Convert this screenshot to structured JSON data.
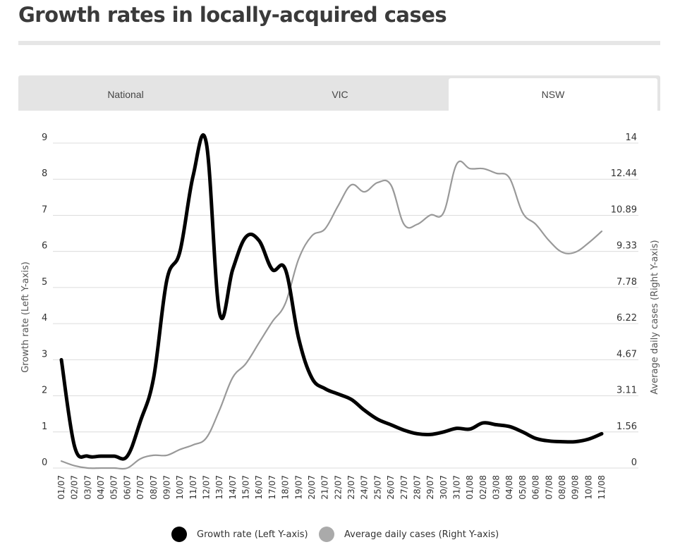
{
  "page": {
    "title": "Growth rates in locally-acquired cases"
  },
  "tabs": [
    {
      "label": "National",
      "active": false
    },
    {
      "label": "VIC",
      "active": false
    },
    {
      "label": "NSW",
      "active": true
    }
  ],
  "chart_data": {
    "type": "line",
    "title": "Growth rates in locally-acquired cases",
    "categories": [
      "01/07",
      "02/07",
      "03/07",
      "04/07",
      "05/07",
      "06/07",
      "07/07",
      "08/07",
      "09/07",
      "10/07",
      "11/07",
      "12/07",
      "13/07",
      "14/07",
      "15/07",
      "16/07",
      "17/07",
      "18/07",
      "19/07",
      "20/07",
      "21/07",
      "22/07",
      "23/07",
      "24/07",
      "25/07",
      "26/07",
      "27/07",
      "28/07",
      "29/07",
      "30/07",
      "31/07",
      "01/08",
      "02/08",
      "03/08",
      "04/08",
      "05/08",
      "06/08",
      "07/08",
      "08/08",
      "09/08",
      "10/08",
      "11/08"
    ],
    "left_axis": {
      "label": "Growth rate (Left Y-axis)",
      "ticks": [
        "0",
        "1",
        "2",
        "3",
        "4",
        "5",
        "6",
        "7",
        "8",
        "9"
      ],
      "ylim": [
        0,
        9
      ]
    },
    "right_axis": {
      "label": "Average daily cases (Right Y-axis)",
      "ticks": [
        "0",
        "1.56",
        "3.11",
        "4.67",
        "6.22",
        "7.78",
        "9.33",
        "10.89",
        "12.44",
        "14"
      ],
      "ylim": [
        0,
        14
      ]
    },
    "series": [
      {
        "name": "Growth rate (Left Y-axis)",
        "axis": "left",
        "color": "#000000",
        "values": [
          3.0,
          0.6,
          0.33,
          0.33,
          0.33,
          0.33,
          1.3,
          2.5,
          5.2,
          6.0,
          8.1,
          9.0,
          4.3,
          5.5,
          6.4,
          6.3,
          5.5,
          5.5,
          3.6,
          2.5,
          2.2,
          2.05,
          1.9,
          1.6,
          1.35,
          1.2,
          1.05,
          0.95,
          0.93,
          1.0,
          1.1,
          1.08,
          1.25,
          1.2,
          1.15,
          1.0,
          0.82,
          0.75,
          0.73,
          0.73,
          0.8,
          0.95
        ]
      },
      {
        "name": "Average daily cases (Right Y-axis)",
        "axis": "right",
        "color": "#999999",
        "values": [
          0.3,
          0.1,
          0.0,
          0.0,
          0.0,
          0.0,
          0.4,
          0.55,
          0.55,
          0.8,
          1.0,
          1.3,
          2.5,
          3.9,
          4.5,
          5.4,
          6.3,
          7.1,
          9.0,
          10.0,
          10.3,
          11.3,
          12.2,
          11.9,
          12.3,
          12.2,
          10.5,
          10.5,
          10.9,
          11.0,
          13.1,
          12.9,
          12.9,
          12.7,
          12.5,
          11.0,
          10.5,
          9.8,
          9.3,
          9.3,
          9.7,
          10.2
        ]
      }
    ],
    "legend": {
      "position": "bottom"
    },
    "grid": true
  }
}
